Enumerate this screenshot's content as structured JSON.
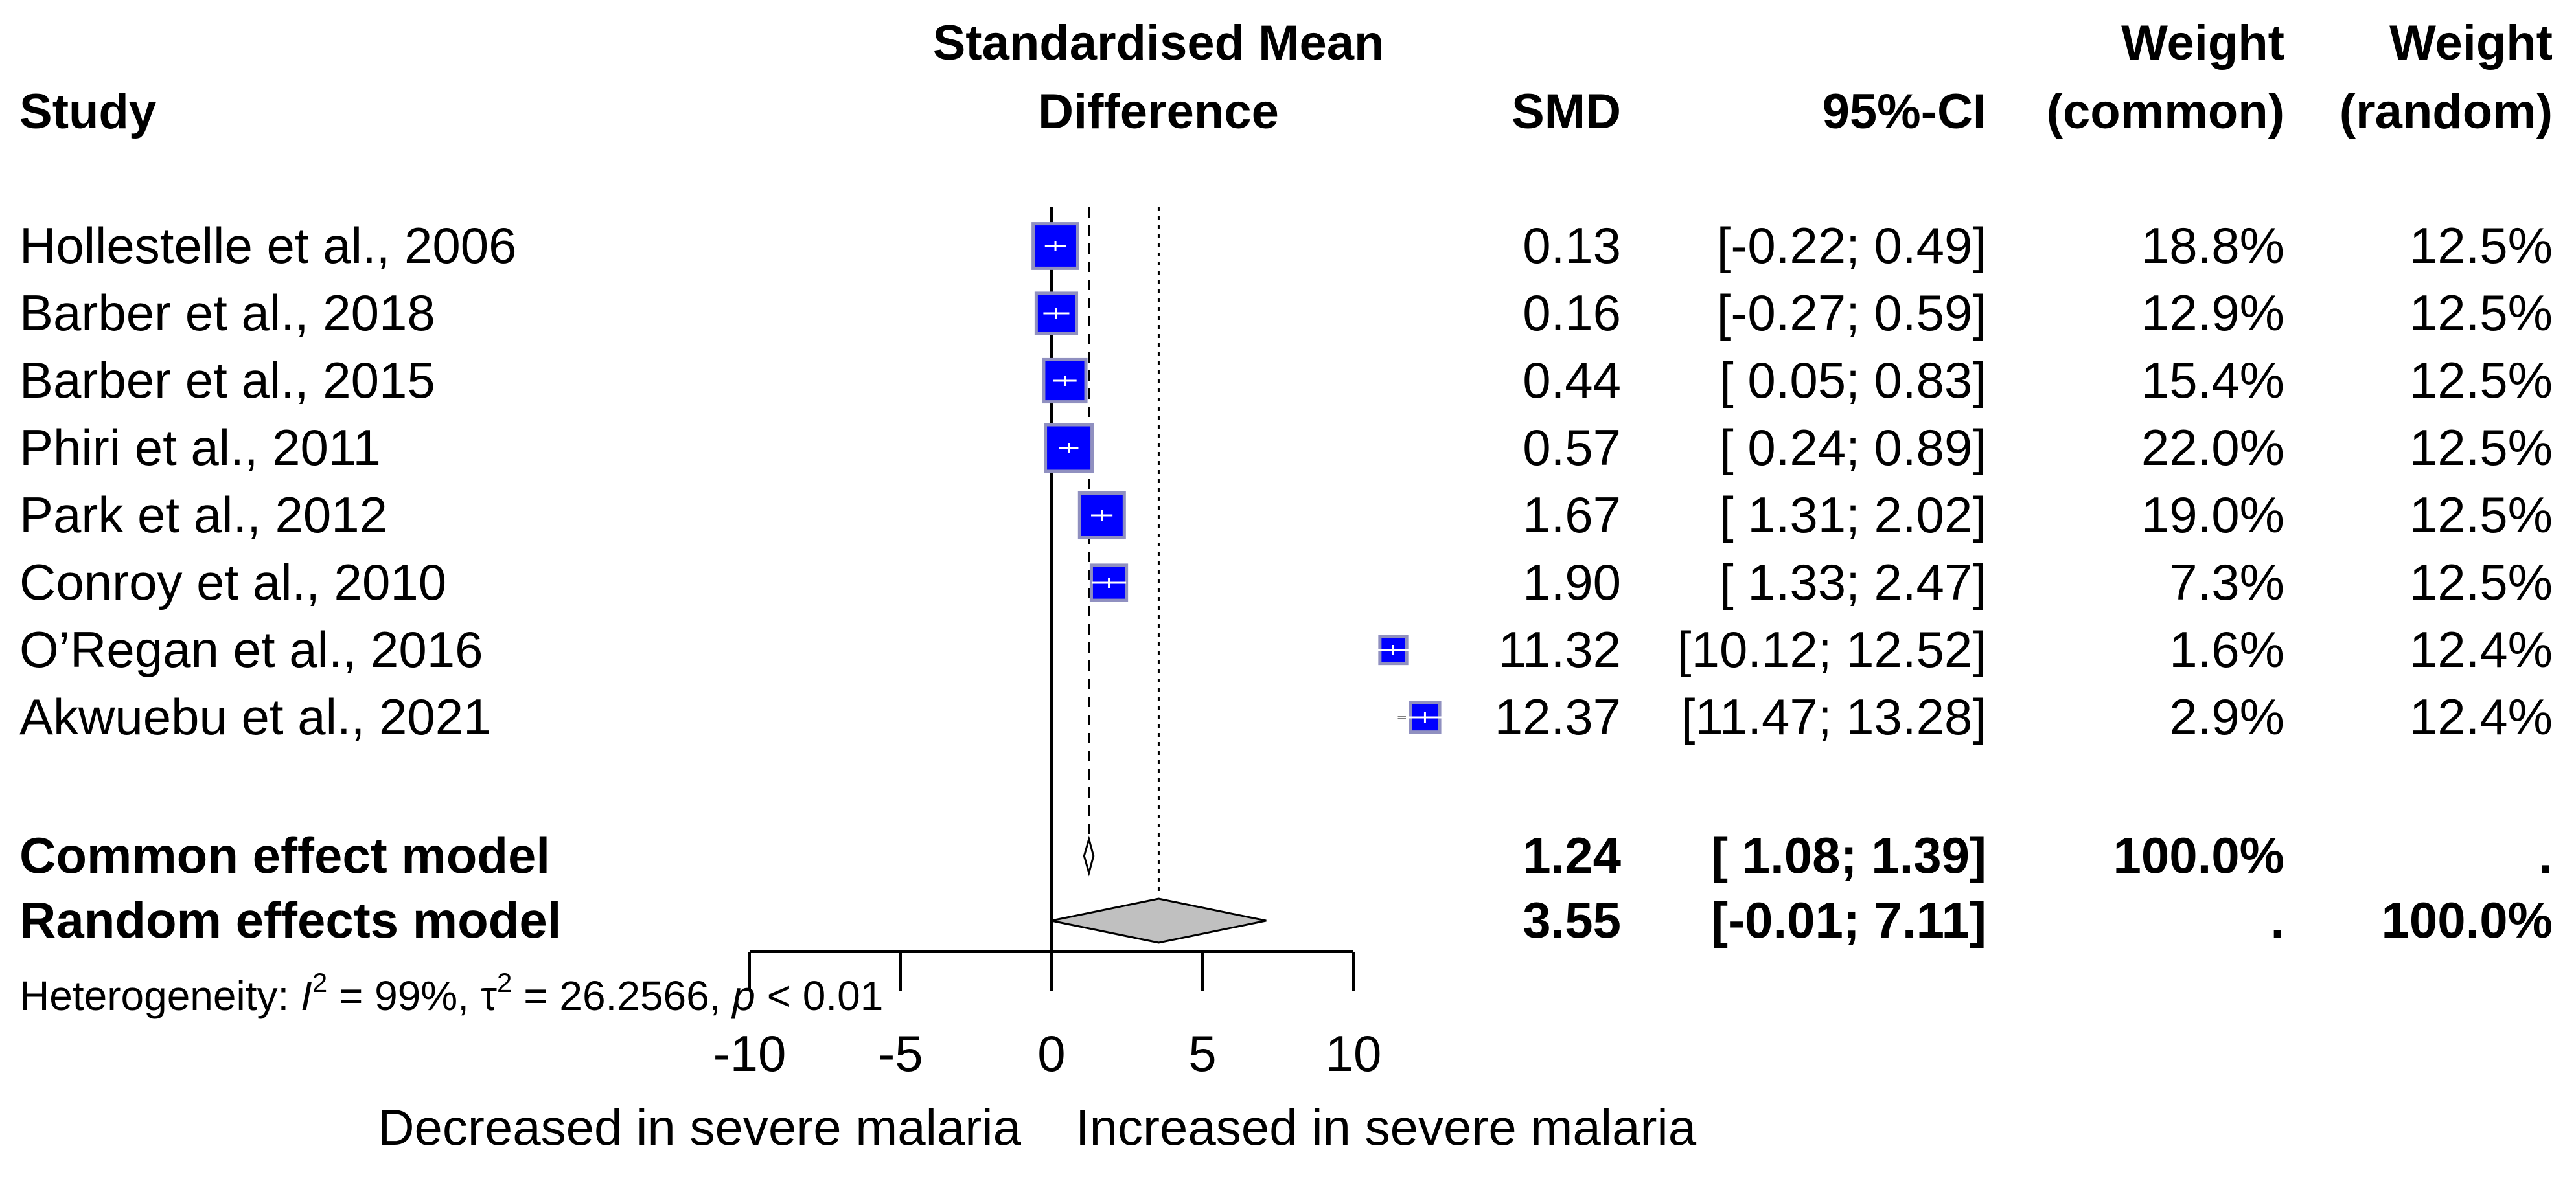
{
  "chart_data": {
    "type": "forest",
    "measure": "SMD",
    "xlim": [
      -10,
      10
    ],
    "ticks": [
      -10,
      -5,
      0,
      5,
      10
    ],
    "columns": {
      "study": "Study",
      "plot_title": [
        "Standardised Mean",
        "Difference"
      ],
      "smd": "SMD",
      "ci": "95%-CI",
      "weight_common": [
        "Weight",
        "(common)"
      ],
      "weight_random": [
        "Weight",
        "(random)"
      ]
    },
    "studies": [
      {
        "name": "Hollestelle et al., 2006",
        "smd": 0.13,
        "lower": -0.22,
        "upper": 0.49,
        "smd_text": "0.13",
        "ci_text": "[-0.22;  0.49]",
        "w_common": "18.8%",
        "w_random": "12.5%",
        "w_common_value": 18.8
      },
      {
        "name": "Barber et al., 2018",
        "smd": 0.16,
        "lower": -0.27,
        "upper": 0.59,
        "smd_text": "0.16",
        "ci_text": "[-0.27;  0.59]",
        "w_common": "12.9%",
        "w_random": "12.5%",
        "w_common_value": 12.9
      },
      {
        "name": "Barber et al., 2015",
        "smd": 0.44,
        "lower": 0.05,
        "upper": 0.83,
        "smd_text": "0.44",
        "ci_text": "[ 0.05;  0.83]",
        "w_common": "15.4%",
        "w_random": "12.5%",
        "w_common_value": 15.4
      },
      {
        "name": "Phiri et al., 2011",
        "smd": 0.57,
        "lower": 0.24,
        "upper": 0.89,
        "smd_text": "0.57",
        "ci_text": "[ 0.24;  0.89]",
        "w_common": "22.0%",
        "w_random": "12.5%",
        "w_common_value": 22.0
      },
      {
        "name": "Park et al., 2012",
        "smd": 1.67,
        "lower": 1.31,
        "upper": 2.02,
        "smd_text": "1.67",
        "ci_text": "[ 1.31;  2.02]",
        "w_common": "19.0%",
        "w_random": "12.5%",
        "w_common_value": 19.0
      },
      {
        "name": "Conroy et al., 2010",
        "smd": 1.9,
        "lower": 1.33,
        "upper": 2.47,
        "smd_text": "1.90",
        "ci_text": "[ 1.33;  2.47]",
        "w_common": "7.3%",
        "w_random": "12.5%",
        "w_common_value": 7.3
      },
      {
        "name": "O’Regan et al., 2016",
        "smd": 11.32,
        "lower": 10.12,
        "upper": 12.52,
        "smd_text": "11.32",
        "ci_text": "[10.12; 12.52]",
        "w_common": "1.6%",
        "w_random": "12.4%",
        "w_common_value": 1.6
      },
      {
        "name": "Akwuebu et al., 2021",
        "smd": 12.37,
        "lower": 11.47,
        "upper": 13.28,
        "smd_text": "12.37",
        "ci_text": "[11.47; 13.28]",
        "w_common": "2.9%",
        "w_random": "12.4%",
        "w_common_value": 2.9
      }
    ],
    "pooled": [
      {
        "name": "Common effect model",
        "smd": 1.24,
        "lower": 1.08,
        "upper": 1.39,
        "smd_text": "1.24",
        "ci_text": "[ 1.08;  1.39]",
        "w_common": "100.0%",
        "w_random": "."
      },
      {
        "name": "Random effects model",
        "smd": 3.55,
        "lower": -0.01,
        "upper": 7.11,
        "smd_text": "3.55",
        "ci_text": "[-0.01;  7.11]",
        "w_common": ".",
        "w_random": "100.0%"
      }
    ],
    "heterogeneity": {
      "prefix": "Heterogeneity: ",
      "i2_sym": "I",
      "i2_text": " = 99%, ",
      "tau_sym": "τ",
      "tau_text": " = 26.2566, ",
      "p_sym": "p",
      "p_text": " < 0.01",
      "sup": "2"
    },
    "xlabel_left": "Decreased in severe malaria",
    "xlabel_right": "Increased in severe malaria",
    "colors": {
      "square_fill": "#0000ff",
      "square_stroke": "#9090c0",
      "ci_line": "#000000",
      "inside_line": "#ffffff",
      "diamond_fill": "#c0c0c0"
    }
  }
}
